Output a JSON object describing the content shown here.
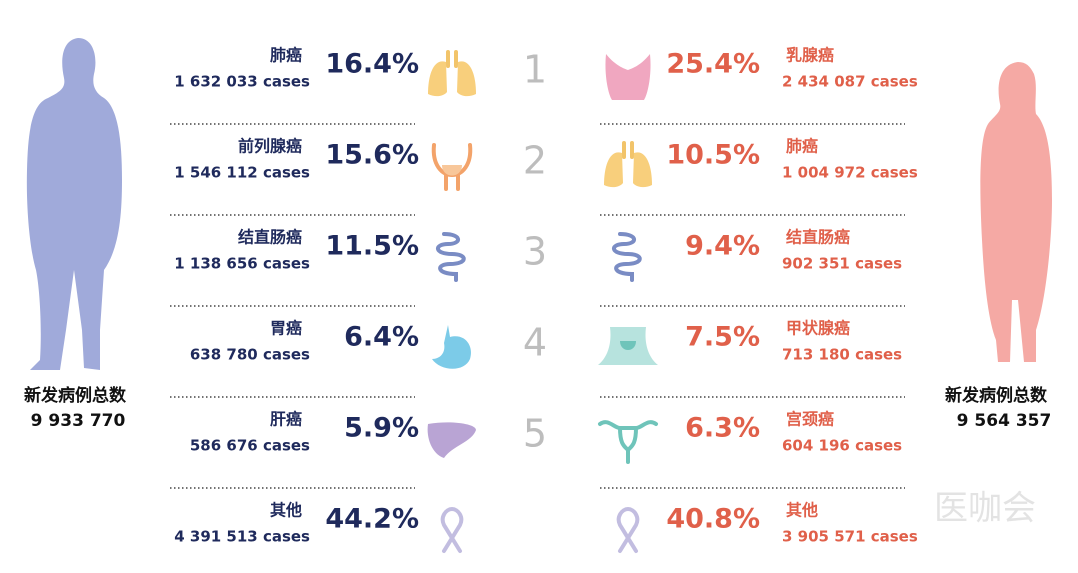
{
  "ranks": [
    "1",
    "2",
    "3",
    "4",
    "5"
  ],
  "men": {
    "label": "新发病例总数",
    "total": "9 933 770",
    "rows": [
      {
        "name": "肺癌",
        "cases": "1 632 033 cases",
        "percent": "16.4%"
      },
      {
        "name": "前列腺癌",
        "cases": "1 546 112 cases",
        "percent": "15.6%"
      },
      {
        "name": "结直肠癌",
        "cases": "1 138 656 cases",
        "percent": "11.5%"
      },
      {
        "name": "胃癌",
        "cases": "638 780 cases",
        "percent": "6.4%"
      },
      {
        "name": "肝癌",
        "cases": "586 676 cases",
        "percent": "5.9%"
      },
      {
        "name": "其他",
        "cases": "4 391 513 cases",
        "percent": "44.2%"
      }
    ]
  },
  "women": {
    "label": "新发病例总数",
    "total": "9 564 357",
    "rows": [
      {
        "name": "乳腺癌",
        "cases": "2 434 087 cases",
        "percent": "25.4%"
      },
      {
        "name": "肺癌",
        "cases": "1 004 972 cases",
        "percent": "10.5%"
      },
      {
        "name": "结直肠癌",
        "cases": "902 351 cases",
        "percent": "9.4%"
      },
      {
        "name": "甲状腺癌",
        "cases": "713 180 cases",
        "percent": "7.5%"
      },
      {
        "name": "宫颈癌",
        "cases": "604 196 cases",
        "percent": "6.3%"
      },
      {
        "name": "其他",
        "cases": "3 905 571 cases",
        "percent": "40.8%"
      }
    ]
  },
  "watermark": "医咖会"
}
